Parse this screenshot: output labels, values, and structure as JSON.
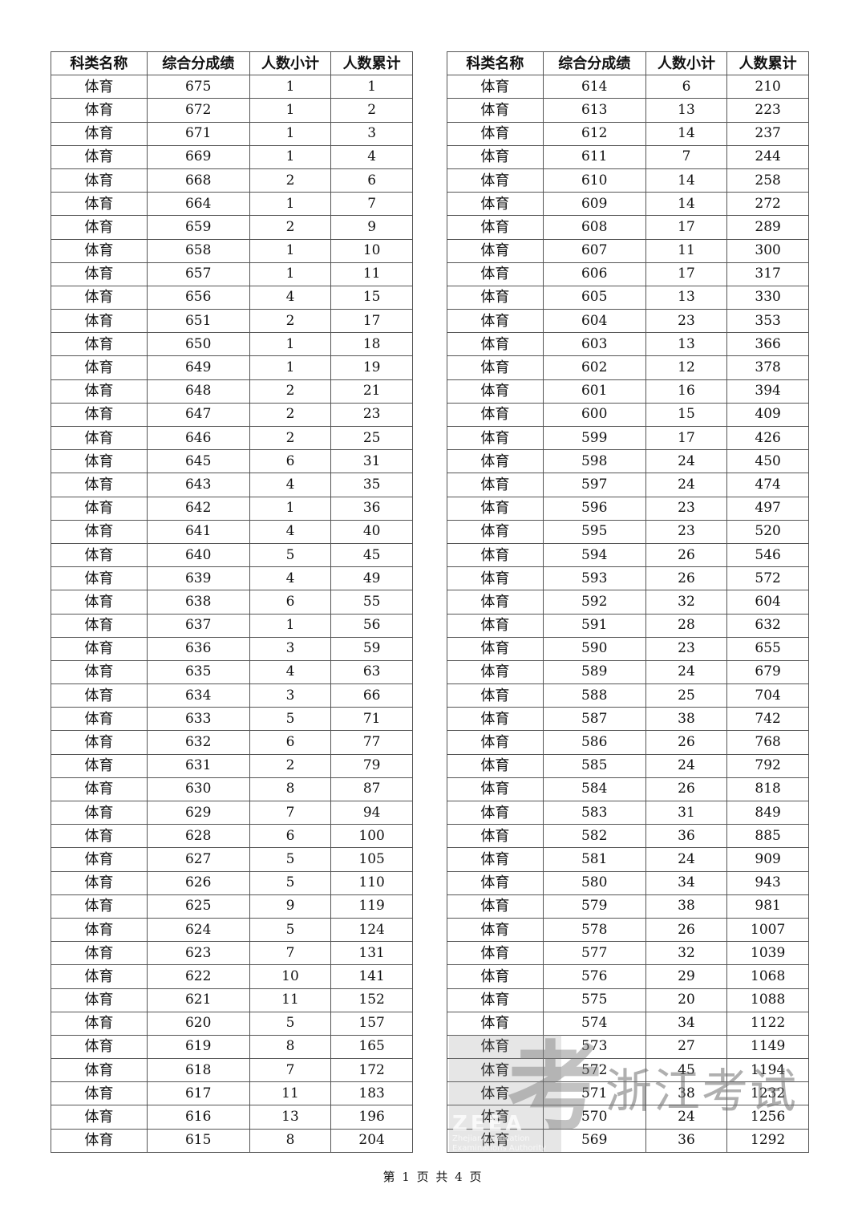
{
  "headers": [
    "科类名称",
    "综合分成绩",
    "人数小计",
    "人数累计"
  ],
  "left_rows": [
    [
      "体育",
      "675",
      "1",
      "1"
    ],
    [
      "体育",
      "672",
      "1",
      "2"
    ],
    [
      "体育",
      "671",
      "1",
      "3"
    ],
    [
      "体育",
      "669",
      "1",
      "4"
    ],
    [
      "体育",
      "668",
      "2",
      "6"
    ],
    [
      "体育",
      "664",
      "1",
      "7"
    ],
    [
      "体育",
      "659",
      "2",
      "9"
    ],
    [
      "体育",
      "658",
      "1",
      "10"
    ],
    [
      "体育",
      "657",
      "1",
      "11"
    ],
    [
      "体育",
      "656",
      "4",
      "15"
    ],
    [
      "体育",
      "651",
      "2",
      "17"
    ],
    [
      "体育",
      "650",
      "1",
      "18"
    ],
    [
      "体育",
      "649",
      "1",
      "19"
    ],
    [
      "体育",
      "648",
      "2",
      "21"
    ],
    [
      "体育",
      "647",
      "2",
      "23"
    ],
    [
      "体育",
      "646",
      "2",
      "25"
    ],
    [
      "体育",
      "645",
      "6",
      "31"
    ],
    [
      "体育",
      "643",
      "4",
      "35"
    ],
    [
      "体育",
      "642",
      "1",
      "36"
    ],
    [
      "体育",
      "641",
      "4",
      "40"
    ],
    [
      "体育",
      "640",
      "5",
      "45"
    ],
    [
      "体育",
      "639",
      "4",
      "49"
    ],
    [
      "体育",
      "638",
      "6",
      "55"
    ],
    [
      "体育",
      "637",
      "1",
      "56"
    ],
    [
      "体育",
      "636",
      "3",
      "59"
    ],
    [
      "体育",
      "635",
      "4",
      "63"
    ],
    [
      "体育",
      "634",
      "3",
      "66"
    ],
    [
      "体育",
      "633",
      "5",
      "71"
    ],
    [
      "体育",
      "632",
      "6",
      "77"
    ],
    [
      "体育",
      "631",
      "2",
      "79"
    ],
    [
      "体育",
      "630",
      "8",
      "87"
    ],
    [
      "体育",
      "629",
      "7",
      "94"
    ],
    [
      "体育",
      "628",
      "6",
      "100"
    ],
    [
      "体育",
      "627",
      "5",
      "105"
    ],
    [
      "体育",
      "626",
      "5",
      "110"
    ],
    [
      "体育",
      "625",
      "9",
      "119"
    ],
    [
      "体育",
      "624",
      "5",
      "124"
    ],
    [
      "体育",
      "623",
      "7",
      "131"
    ],
    [
      "体育",
      "622",
      "10",
      "141"
    ],
    [
      "体育",
      "621",
      "11",
      "152"
    ],
    [
      "体育",
      "620",
      "5",
      "157"
    ],
    [
      "体育",
      "619",
      "8",
      "165"
    ],
    [
      "体育",
      "618",
      "7",
      "172"
    ],
    [
      "体育",
      "617",
      "11",
      "183"
    ],
    [
      "体育",
      "616",
      "13",
      "196"
    ],
    [
      "体育",
      "615",
      "8",
      "204"
    ]
  ],
  "right_rows": [
    [
      "体育",
      "614",
      "6",
      "210"
    ],
    [
      "体育",
      "613",
      "13",
      "223"
    ],
    [
      "体育",
      "612",
      "14",
      "237"
    ],
    [
      "体育",
      "611",
      "7",
      "244"
    ],
    [
      "体育",
      "610",
      "14",
      "258"
    ],
    [
      "体育",
      "609",
      "14",
      "272"
    ],
    [
      "体育",
      "608",
      "17",
      "289"
    ],
    [
      "体育",
      "607",
      "11",
      "300"
    ],
    [
      "体育",
      "606",
      "17",
      "317"
    ],
    [
      "体育",
      "605",
      "13",
      "330"
    ],
    [
      "体育",
      "604",
      "23",
      "353"
    ],
    [
      "体育",
      "603",
      "13",
      "366"
    ],
    [
      "体育",
      "602",
      "12",
      "378"
    ],
    [
      "体育",
      "601",
      "16",
      "394"
    ],
    [
      "体育",
      "600",
      "15",
      "409"
    ],
    [
      "体育",
      "599",
      "17",
      "426"
    ],
    [
      "体育",
      "598",
      "24",
      "450"
    ],
    [
      "体育",
      "597",
      "24",
      "474"
    ],
    [
      "体育",
      "596",
      "23",
      "497"
    ],
    [
      "体育",
      "595",
      "23",
      "520"
    ],
    [
      "体育",
      "594",
      "26",
      "546"
    ],
    [
      "体育",
      "593",
      "26",
      "572"
    ],
    [
      "体育",
      "592",
      "32",
      "604"
    ],
    [
      "体育",
      "591",
      "28",
      "632"
    ],
    [
      "体育",
      "590",
      "23",
      "655"
    ],
    [
      "体育",
      "589",
      "24",
      "679"
    ],
    [
      "体育",
      "588",
      "25",
      "704"
    ],
    [
      "体育",
      "587",
      "38",
      "742"
    ],
    [
      "体育",
      "586",
      "26",
      "768"
    ],
    [
      "体育",
      "585",
      "24",
      "792"
    ],
    [
      "体育",
      "584",
      "26",
      "818"
    ],
    [
      "体育",
      "583",
      "31",
      "849"
    ],
    [
      "体育",
      "582",
      "36",
      "885"
    ],
    [
      "体育",
      "581",
      "24",
      "909"
    ],
    [
      "体育",
      "580",
      "34",
      "943"
    ],
    [
      "体育",
      "579",
      "38",
      "981"
    ],
    [
      "体育",
      "578",
      "26",
      "1007"
    ],
    [
      "体育",
      "577",
      "32",
      "1039"
    ],
    [
      "体育",
      "576",
      "29",
      "1068"
    ],
    [
      "体育",
      "575",
      "20",
      "1088"
    ],
    [
      "体育",
      "574",
      "34",
      "1122"
    ],
    [
      "体育",
      "573",
      "27",
      "1149"
    ],
    [
      "体育",
      "572",
      "45",
      "1194"
    ],
    [
      "体育",
      "571",
      "38",
      "1232"
    ],
    [
      "体育",
      "570",
      "24",
      "1256"
    ],
    [
      "体育",
      "569",
      "36",
      "1292"
    ]
  ],
  "footer": "第 1 页 共 4 页",
  "watermark": {
    "glyph": "考",
    "text": "浙江考试",
    "abbr": "ZEEA",
    "sub1": "Zhejiang Education",
    "sub2": "Examinations Authority"
  }
}
